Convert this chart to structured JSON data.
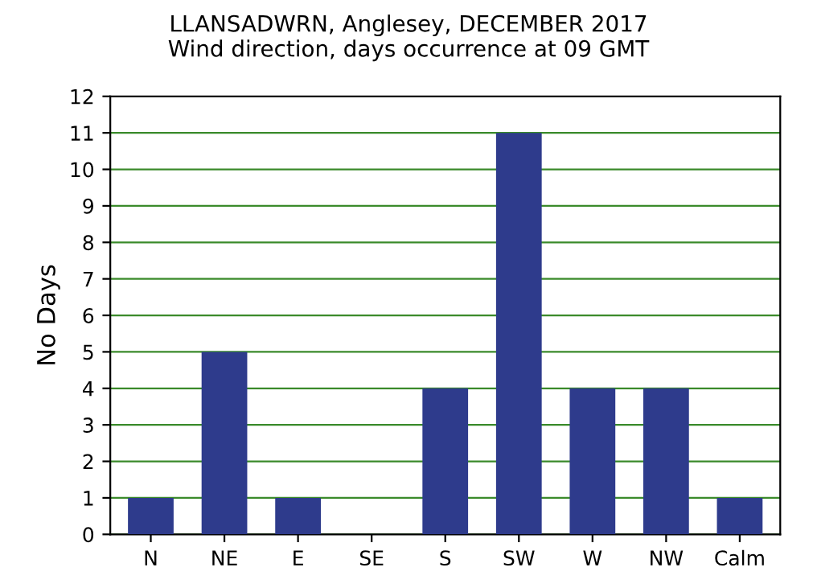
{
  "chart_data": {
    "type": "bar",
    "title": "LLANSADWRN, Anglesey, DECEMBER 2017\nWind direction, days occurrence at 09 GMT",
    "ylabel": "No Days",
    "categories": [
      "N",
      "NE",
      "E",
      "SE",
      "S",
      "SW",
      "W",
      "NW",
      "Calm"
    ],
    "values": [
      1,
      5,
      1,
      0,
      4,
      11,
      4,
      4,
      1
    ],
    "color": "#2e3b8c",
    "ylim": [
      0,
      12
    ],
    "yticks": [
      0,
      1,
      2,
      3,
      4,
      5,
      6,
      7,
      8,
      9,
      10,
      11,
      12
    ],
    "grid": "y"
  }
}
